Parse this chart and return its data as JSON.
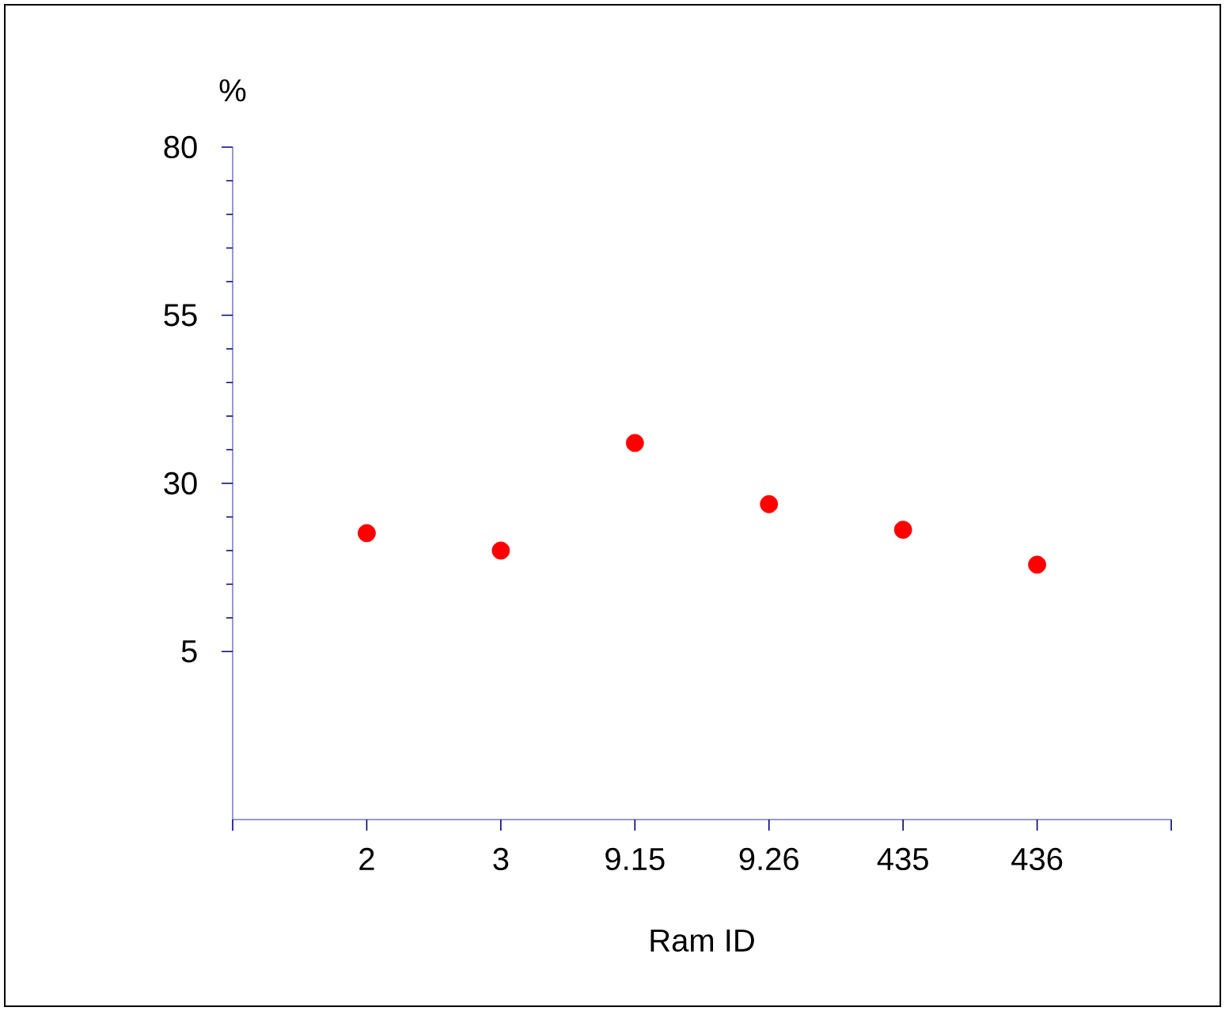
{
  "chart_data": {
    "type": "scatter",
    "xlabel": "Ram ID",
    "ylabel": "%",
    "categories": [
      "2",
      "3",
      "9.15",
      "9.26",
      "435",
      "436"
    ],
    "values": [
      22.6,
      20.0,
      36.0,
      26.9,
      23.1,
      17.9
    ],
    "color": "#ff0000",
    "ylim": [
      -20,
      80
    ],
    "yticks": [
      5,
      30,
      55,
      80
    ]
  }
}
